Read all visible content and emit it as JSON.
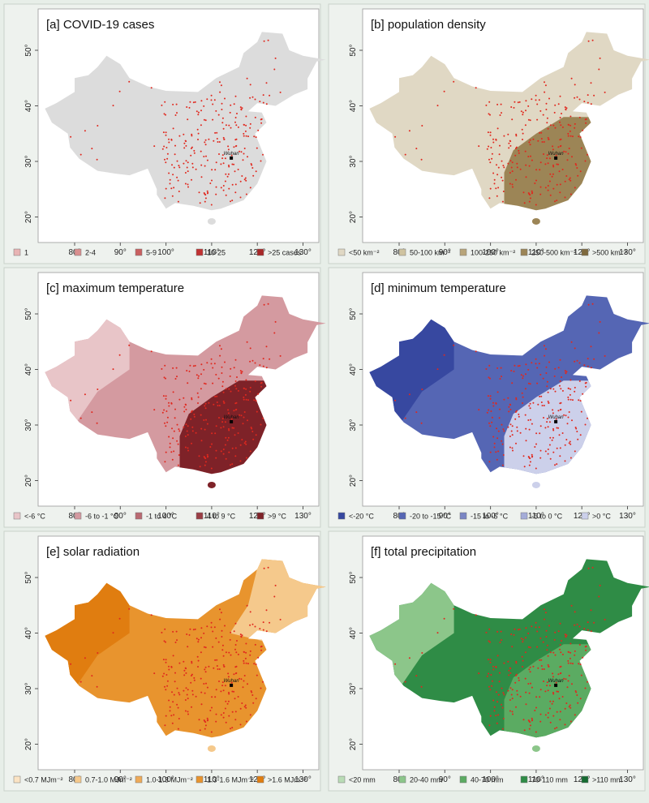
{
  "panels": [
    {
      "title": "[a] COVID-19 cases",
      "legend": [
        {
          "label": "1",
          "color": "#e8b4b4"
        },
        {
          "label": "2-4",
          "color": "#d98f8f"
        },
        {
          "label": "5-9",
          "color": "#c96060"
        },
        {
          "label": "10-25",
          "color": "#c13232"
        },
        {
          "label": ">25 cases",
          "color": "#a82828"
        }
      ]
    },
    {
      "title": "[b] population density",
      "legend": [
        {
          "label": "<50 km⁻²",
          "color": "#e0d8c4"
        },
        {
          "label": "50-100 km⁻²",
          "color": "#cfc3a0"
        },
        {
          "label": "100-250 km⁻²",
          "color": "#b8a57a"
        },
        {
          "label": "250-500 km⁻²",
          "color": "#9c8556"
        },
        {
          "label": ">500 km⁻²",
          "color": "#7f6a3e"
        }
      ]
    },
    {
      "title": "[c] maximum temperature",
      "legend": [
        {
          "label": "<-6 °C",
          "color": "#e8c5c8"
        },
        {
          "label": "-6 to -1 °C",
          "color": "#d49aa0"
        },
        {
          "label": "-1 to 4 °C",
          "color": "#b96a72"
        },
        {
          "label": "4 to 9 °C",
          "color": "#9a3e45"
        },
        {
          "label": ">9 °C",
          "color": "#7e2228"
        }
      ]
    },
    {
      "title": "[d] minimum temperature",
      "legend": [
        {
          "label": "<-20 °C",
          "color": "#3748a0"
        },
        {
          "label": "-20 to -15 °C",
          "color": "#5566b4"
        },
        {
          "label": "-15 to -5 °C",
          "color": "#7a86c4"
        },
        {
          "label": "-5 to 0 °C",
          "color": "#a4acd8"
        },
        {
          "label": ">0 °C",
          "color": "#ccd0ea"
        }
      ]
    },
    {
      "title": "[e] solar radiation",
      "legend": [
        {
          "label": "<0.7 MJm⁻²",
          "color": "#fbe3c4"
        },
        {
          "label": "0.7-1.0 MJm⁻²",
          "color": "#f5c98c"
        },
        {
          "label": "1.0-1.3 MJm⁻²",
          "color": "#eeaa58"
        },
        {
          "label": "1.3-1.6 MJm⁻²",
          "color": "#e8942e"
        },
        {
          "label": ">1.6 MJm⁻²",
          "color": "#e07d10"
        }
      ]
    },
    {
      "title": "[f] total precipitation",
      "legend": [
        {
          "label": "<20 mm",
          "color": "#b9dcb5"
        },
        {
          "label": "20-40 mm",
          "color": "#8cc68a"
        },
        {
          "label": "40-70 mm",
          "color": "#5bab62"
        },
        {
          "label": "70-110 mm",
          "color": "#2f8c46"
        },
        {
          "label": ">110 mm",
          "color": "#166b32"
        }
      ]
    }
  ],
  "x_ticks": [
    "80°",
    "90°",
    "100°",
    "110°",
    "120°",
    "130°"
  ],
  "y_ticks": [
    "50°",
    "40°",
    "30°",
    "20°"
  ],
  "wuhan_label": "Wuhan"
}
